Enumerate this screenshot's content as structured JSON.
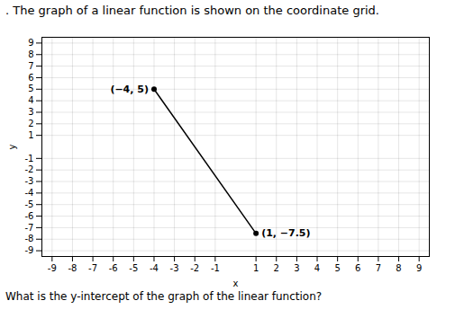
{
  "chart_data": {
    "type": "line",
    "title": ". The graph of a linear function is shown on the coordinate grid.",
    "caption": "What is the y-intercept of the graph of the linear function?",
    "x": [
      -4,
      1
    ],
    "values": [
      5,
      -7.5
    ],
    "value_labels": [
      "(−4, 5)",
      "(1, −7.5)"
    ],
    "data_labels": true,
    "color": "#000000",
    "marker": "circle",
    "xlabel": "x",
    "ylabel": "y",
    "xlim": [
      -9.5,
      9.5
    ],
    "ylim": [
      -9.5,
      9.5
    ],
    "xticks": [
      -9,
      -8,
      -7,
      -6,
      -5,
      -4,
      -3,
      -2,
      -1,
      1,
      2,
      3,
      4,
      5,
      6,
      7,
      8,
      9
    ],
    "yticks": [
      -9,
      -8,
      -7,
      -6,
      -5,
      -4,
      -3,
      -2,
      -1,
      1,
      2,
      3,
      4,
      5,
      6,
      7,
      8,
      9
    ],
    "grid": true
  }
}
